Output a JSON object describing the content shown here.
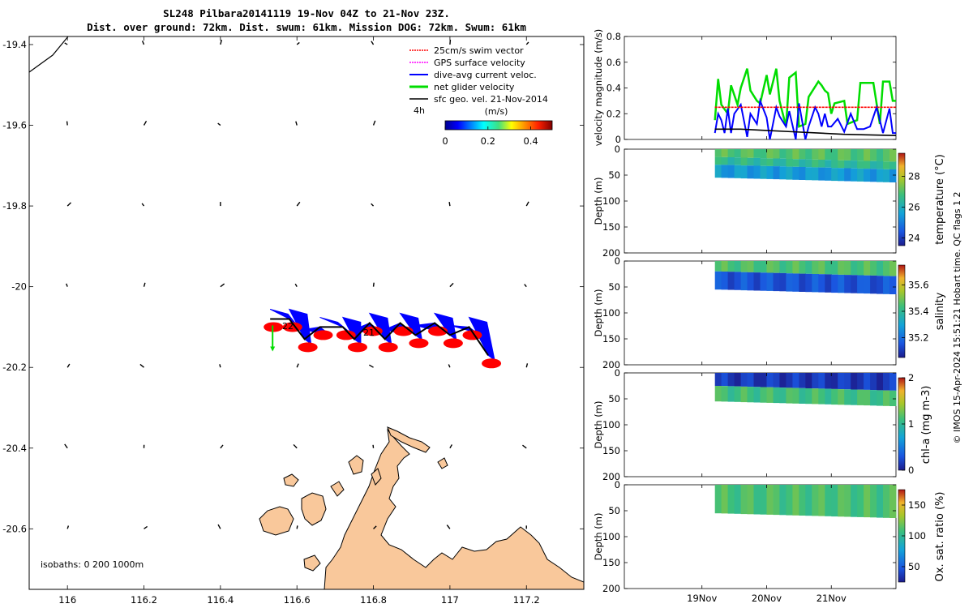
{
  "header": {
    "title_line1": "SL248 Pilbara20141119 19-Nov 04Z to 21-Nov 23Z.",
    "title_line2": "Dist. over ground: 72km. Dist. swum: 61km. Mission DOG: 72km. Swum: 61km"
  },
  "footer": {
    "credit": "© IMOS 15-Apr-2024 15:51:21 Hobart time. QC flags 1  2"
  },
  "colors": {
    "land": "#f9c89b",
    "swim": "#ff0000",
    "gps": "#ff00ff",
    "current": "#0000ff",
    "net": "#00dd00",
    "geo": "#000000"
  },
  "chart_data": [
    {
      "type": "scatter",
      "name": "map",
      "xlim": [
        115.9,
        117.35
      ],
      "ylim": [
        -20.75,
        -19.38
      ],
      "xticks": [
        116,
        116.2,
        116.4,
        116.6,
        116.8,
        117,
        117.2
      ],
      "yticks": [
        -19.4,
        -19.6,
        -19.8,
        -20,
        -20.2,
        -20.4,
        -20.6
      ],
      "xtick_labels": [
        "116",
        "116.2",
        "116.4",
        "116.6",
        "116.8",
        "117",
        "117.2"
      ],
      "ytick_labels": [
        "-19.4",
        "-19.6",
        "-19.8",
        "-20",
        "-20.2",
        "-20.4",
        "-20.6"
      ],
      "legend": [
        {
          "label": "25cm/s swim vector",
          "color": "#ff0000"
        },
        {
          "label": "GPS surface velocity",
          "color": "#ff00ff"
        },
        {
          "label": "dive-avg current veloc.",
          "color": "#0000ff"
        },
        {
          "label": "net glider velocity",
          "color": "#00dd00"
        },
        {
          "label": "sfc geo. vel. 21-Nov-2014",
          "color": "#000000"
        }
      ],
      "legend_placement": "top-right",
      "colorbar": {
        "title": "(m/s)",
        "range": [
          0,
          0.5
        ],
        "tick_labels": [
          "0",
          "0.2",
          "0.4"
        ],
        "ticks": [
          0,
          0.2,
          0.4
        ]
      },
      "annotations": {
        "time_tag": "4h",
        "day_labels": [
          "22",
          "21"
        ],
        "isobaths": "isobaths: 0   200  1000m"
      },
      "glider_track": {
        "lon": [
          116.53,
          116.58,
          116.62,
          116.66,
          116.72,
          116.75,
          116.79,
          116.83,
          116.87,
          116.91,
          116.96,
          117.0,
          117.05,
          117.1
        ],
        "lat": [
          -20.08,
          -20.08,
          -20.13,
          -20.1,
          -20.1,
          -20.13,
          -20.09,
          -20.13,
          -20.09,
          -20.12,
          -20.09,
          -20.12,
          -20.1,
          -20.17
        ]
      },
      "day_label_positions": {
        "lon": [
          116.54,
          116.72
        ],
        "lat": [
          -20.12,
          -20.13
        ]
      }
    },
    {
      "type": "line",
      "name": "velocity",
      "ylabel": "velocity magnitude (m/s)",
      "ylim": [
        0,
        0.8
      ],
      "yticks": [
        0,
        0.2,
        0.4,
        0.6,
        0.8
      ],
      "ytick_labels": [
        "0",
        "0.2",
        "0.4",
        "0.6",
        "0.8"
      ],
      "xlim_days": [
        17.8,
        22.0
      ],
      "series": [
        {
          "color": "#00dd00",
          "x": [
            19.2,
            19.25,
            19.3,
            19.4,
            19.45,
            19.55,
            19.6,
            19.7,
            19.75,
            19.85,
            19.9,
            20.0,
            20.05,
            20.15,
            20.2,
            20.3,
            20.35,
            20.45,
            20.5,
            20.6,
            20.65,
            20.8,
            20.85,
            20.9,
            20.95,
            21.0,
            21.05,
            21.2,
            21.25,
            21.4,
            21.45,
            21.6,
            21.65,
            21.75,
            21.8,
            21.9,
            21.95,
            22.0
          ],
          "y": [
            0.15,
            0.47,
            0.27,
            0.2,
            0.42,
            0.27,
            0.4,
            0.55,
            0.38,
            0.3,
            0.28,
            0.5,
            0.35,
            0.55,
            0.3,
            0.1,
            0.48,
            0.52,
            0.1,
            0.12,
            0.33,
            0.45,
            0.42,
            0.38,
            0.36,
            0.2,
            0.28,
            0.3,
            0.12,
            0.15,
            0.44,
            0.44,
            0.44,
            0.12,
            0.45,
            0.45,
            0.3,
            0.3
          ]
        },
        {
          "color": "#0000ff",
          "x": [
            19.2,
            19.25,
            19.3,
            19.35,
            19.4,
            19.45,
            19.5,
            19.6,
            19.7,
            19.75,
            19.85,
            19.9,
            20.0,
            20.05,
            20.15,
            20.2,
            20.3,
            20.35,
            20.45,
            20.5,
            20.6,
            20.65,
            20.75,
            20.8,
            20.85,
            20.9,
            20.95,
            21.0,
            21.1,
            21.2,
            21.3,
            21.4,
            21.5,
            21.6,
            21.7,
            21.8,
            21.9,
            21.95,
            22.0
          ],
          "y": [
            0.05,
            0.2,
            0.15,
            0.05,
            0.24,
            0.05,
            0.2,
            0.27,
            0.02,
            0.2,
            0.12,
            0.3,
            0.17,
            0.0,
            0.25,
            0.18,
            0.1,
            0.22,
            0.0,
            0.28,
            0.0,
            0.1,
            0.25,
            0.2,
            0.1,
            0.2,
            0.1,
            0.1,
            0.16,
            0.06,
            0.2,
            0.08,
            0.08,
            0.1,
            0.25,
            0.05,
            0.24,
            0.05,
            0.05
          ]
        },
        {
          "color": "#ff0000",
          "x": [
            19.2,
            20.0,
            21.0,
            22.0
          ],
          "y": [
            0.25,
            0.25,
            0.25,
            0.25
          ]
        },
        {
          "color": "#000000",
          "x": [
            19.2,
            19.6,
            20.0,
            20.4,
            20.8,
            21.2,
            21.6,
            22.0
          ],
          "y": [
            0.08,
            0.08,
            0.07,
            0.06,
            0.05,
            0.04,
            0.035,
            0.03
          ]
        }
      ]
    },
    {
      "type": "heatmap",
      "name": "temperature",
      "ylabel": "Depth (m)",
      "ylim": [
        0,
        200
      ],
      "yticks": [
        0,
        50,
        100,
        150,
        200
      ],
      "ytick_labels": [
        "0",
        "50",
        "100",
        "150",
        "200"
      ],
      "colorbar": {
        "title": "temperature (°C)",
        "range": [
          23.5,
          29.5
        ],
        "ticks": [
          24,
          26,
          28
        ],
        "tick_labels": [
          "24",
          "26",
          "28"
        ]
      },
      "layers": [
        {
          "depth": [
            0,
            15
          ],
          "value": 27.0,
          "note_color": "#a6d31e"
        },
        {
          "depth": [
            15,
            30
          ],
          "value": 26.5
        },
        {
          "depth": [
            30,
            55
          ],
          "value": 25.5
        }
      ]
    },
    {
      "type": "heatmap",
      "name": "salinity",
      "ylabel": "Depth (m)",
      "ylim": [
        0,
        200
      ],
      "yticks": [
        0,
        50,
        100,
        150,
        200
      ],
      "ytick_labels": [
        "0",
        "50",
        "100",
        "150",
        "200"
      ],
      "colorbar": {
        "title": "salinity",
        "range": [
          35.05,
          35.75
        ],
        "ticks": [
          35.2,
          35.4,
          35.6
        ],
        "tick_labels": [
          "35.2",
          "35.4",
          "35.6"
        ]
      },
      "layers": [
        {
          "depth": [
            0,
            20
          ],
          "value": 35.45
        },
        {
          "depth": [
            20,
            55
          ],
          "value": 35.15
        }
      ]
    },
    {
      "type": "heatmap",
      "name": "chla",
      "ylabel": "Depth (m)",
      "ylim": [
        0,
        200
      ],
      "yticks": [
        0,
        50,
        100,
        150,
        200
      ],
      "ytick_labels": [
        "0",
        "50",
        "100",
        "150",
        "200"
      ],
      "colorbar": {
        "title": "chl-a (mg m-3)",
        "range": [
          0,
          2
        ],
        "ticks": [
          0,
          1,
          2
        ],
        "tick_labels": [
          "0",
          "1",
          "2"
        ]
      },
      "layers": [
        {
          "depth": [
            0,
            25
          ],
          "value": 0.15
        },
        {
          "depth": [
            25,
            55
          ],
          "value": 1.1
        }
      ]
    },
    {
      "type": "heatmap",
      "name": "oxygen",
      "ylabel": "Depth (m)",
      "ylim": [
        0,
        200
      ],
      "yticks": [
        0,
        50,
        100,
        150,
        200
      ],
      "ytick_labels": [
        "0",
        "50",
        "100",
        "150",
        "200"
      ],
      "colorbar": {
        "title": "Ox. sat. ratio (%)",
        "range": [
          25,
          175
        ],
        "ticks": [
          50,
          100,
          150
        ],
        "tick_labels": [
          "50",
          "100",
          "150"
        ]
      },
      "layers": [
        {
          "depth": [
            0,
            55
          ],
          "value": 110
        }
      ]
    },
    {
      "type": "table",
      "name": "time-axis",
      "xtick_labels": [
        "19Nov",
        "20Nov",
        "21Nov"
      ],
      "xticks_days": [
        19,
        20,
        21
      ]
    }
  ]
}
